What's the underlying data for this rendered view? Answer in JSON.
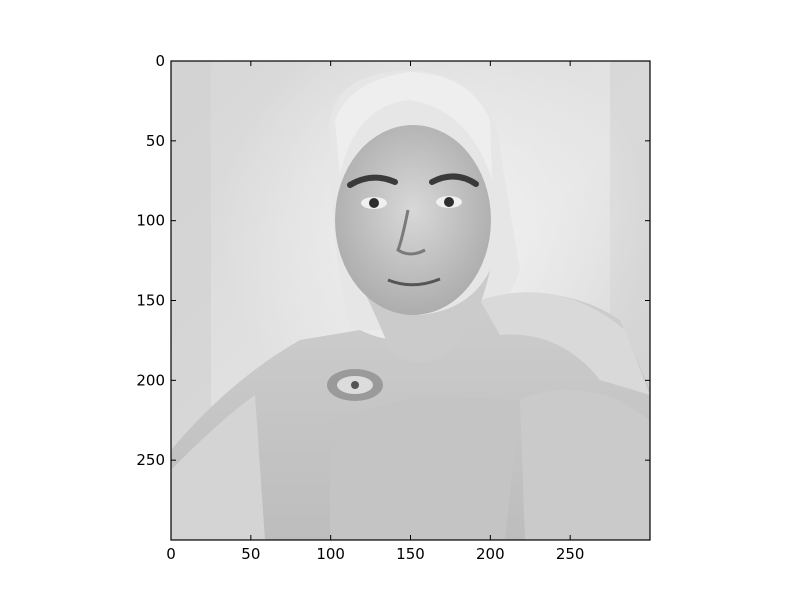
{
  "chart_data": {
    "type": "heatmap",
    "title": "",
    "xlabel": "",
    "ylabel": "",
    "image": {
      "content": "grayscale portrait photograph of a bearded man with long light hair in a draped hooded robe with a decorative clasp at the collar",
      "colormap": "gray",
      "width_units": 300,
      "height_units": 300
    },
    "xlim": [
      0,
      300
    ],
    "ylim": [
      300,
      0
    ],
    "x_ticks": [
      0,
      50,
      100,
      150,
      200,
      250
    ],
    "y_ticks": [
      0,
      50,
      100,
      150,
      200,
      250
    ],
    "x_tick_labels": [
      "0",
      "50",
      "100",
      "150",
      "200",
      "250"
    ],
    "y_tick_labels": [
      "0",
      "50",
      "100",
      "150",
      "200",
      "250"
    ],
    "y_axis_inverted": true,
    "grid": false,
    "legend": "none"
  }
}
